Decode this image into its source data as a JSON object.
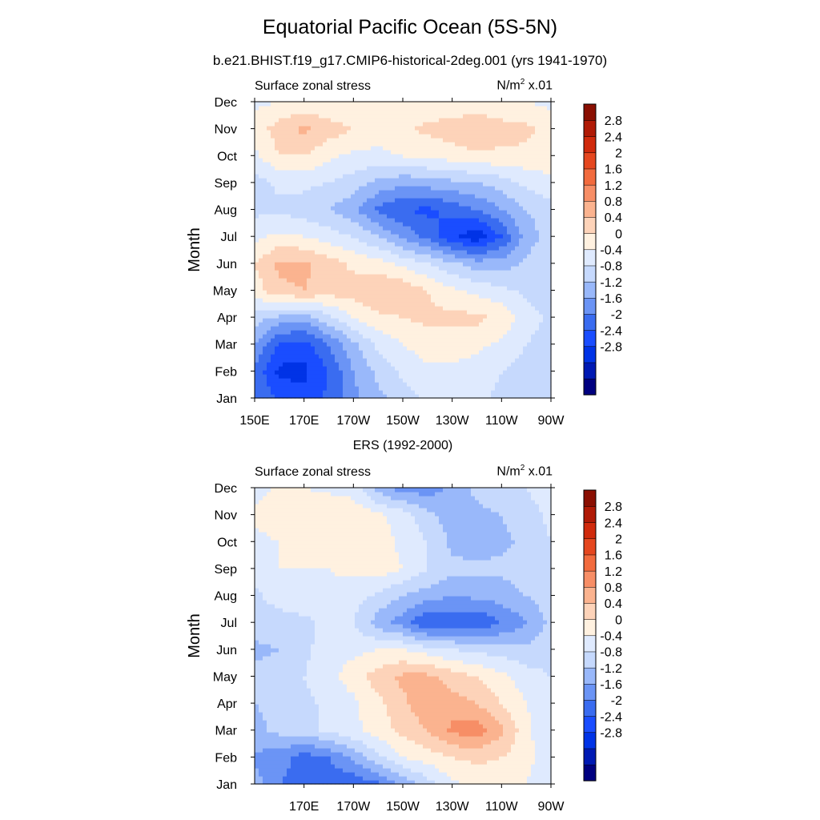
{
  "page": {
    "title": "Equatorial Pacific Ocean (5S-5N)"
  },
  "colors": {
    "palette": [
      "#000080",
      "#0019b3",
      "#0033e6",
      "#1a4dff",
      "#3a6cf0",
      "#6b94f5",
      "#99b8fa",
      "#c6d9fd",
      "#dfeafe",
      "#fff1e0",
      "#fdd3b9",
      "#fbb38f",
      "#f78e66",
      "#f26b3e",
      "#e5471f",
      "#d02a0c",
      "#b01a06",
      "#8a0f02"
    ],
    "palette_order": "low to high"
  },
  "chart_data": [
    {
      "type": "heatmap",
      "title": "b.e21.BHIST.f19_g17.CMIP6-historical-2deg.001 (yrs 1941-1970)",
      "left_string": "Surface zonal stress",
      "right_string": "N/m",
      "right_string_sup": "2",
      "right_string_suffix": " x.01",
      "ylabel": "Month",
      "xlabel": "",
      "x_tick_labels": [
        "150E",
        "170E",
        "170W",
        "150W",
        "130W",
        "110W",
        "90W"
      ],
      "x_tick_values": [
        150,
        170,
        190,
        210,
        230,
        250,
        270
      ],
      "xlim": [
        150,
        270
      ],
      "y_tick_labels": [
        "Jan",
        "Feb",
        "Mar",
        "Apr",
        "May",
        "Jun",
        "Jul",
        "Aug",
        "Sep",
        "Oct",
        "Nov",
        "Dec"
      ],
      "ylim": [
        1,
        12
      ],
      "colorbar_labels": [
        "2.8",
        "2.4",
        "2",
        "1.6",
        "1.2",
        "0.8",
        "0.4",
        "0",
        "-0.4",
        "-0.8",
        "-1.2",
        "-1.6",
        "-2",
        "-2.4",
        "-2.8"
      ],
      "colorbar_levels": [
        -3.2,
        -2.8,
        -2.4,
        -2.0,
        -1.6,
        -1.2,
        -0.8,
        -0.4,
        0,
        0.4,
        0.8,
        1.2,
        1.6,
        2.0,
        2.4,
        2.8,
        3.2
      ],
      "x": [
        150,
        160,
        170,
        180,
        190,
        200,
        210,
        220,
        230,
        240,
        250,
        260,
        270
      ],
      "y": [
        1,
        2,
        3,
        4,
        5,
        6,
        7,
        8,
        9,
        10,
        11,
        12
      ],
      "z": [
        [
          -1.2,
          -1.7,
          -1.9,
          -1.5,
          -0.9,
          -0.5,
          -0.2,
          0.1,
          0.2,
          0.1,
          -0.1,
          -0.3,
          -0.4
        ],
        [
          -1.3,
          -2.1,
          -2.1,
          -1.6,
          -0.8,
          -0.3,
          0.1,
          0.3,
          0.3,
          0.2,
          0.0,
          -0.2,
          -0.3
        ],
        [
          -0.8,
          -1.7,
          -1.8,
          -1.2,
          -0.5,
          0.1,
          0.4,
          0.6,
          0.6,
          0.5,
          0.3,
          0.0,
          -0.2
        ],
        [
          -0.2,
          -0.5,
          -0.6,
          -0.1,
          0.4,
          0.7,
          0.8,
          0.9,
          0.9,
          0.9,
          0.7,
          0.2,
          -0.1
        ],
        [
          0.6,
          1.1,
          1.2,
          1.0,
          1.0,
          1.2,
          1.1,
          0.8,
          0.5,
          0.3,
          0.1,
          -0.1,
          -0.2
        ],
        [
          0.8,
          1.3,
          1.3,
          1.0,
          0.7,
          0.6,
          0.3,
          0.0,
          -0.3,
          -0.6,
          -0.6,
          -0.3,
          -0.2
        ],
        [
          0.3,
          0.5,
          0.4,
          0.2,
          0.0,
          -0.4,
          -0.9,
          -1.3,
          -1.9,
          -2.3,
          -1.6,
          -0.6,
          -0.2
        ],
        [
          -0.1,
          -0.1,
          -0.2,
          -0.4,
          -0.7,
          -1.3,
          -1.6,
          -1.7,
          -1.5,
          -1.2,
          -0.8,
          -0.4,
          -0.2
        ],
        [
          -0.2,
          0.1,
          0.1,
          0.0,
          -0.2,
          -0.5,
          -0.7,
          -0.6,
          -0.5,
          -0.4,
          -0.2,
          0.1,
          0.3
        ],
        [
          0.3,
          0.8,
          0.8,
          0.5,
          0.3,
          0.3,
          0.4,
          0.5,
          0.6,
          0.7,
          0.7,
          0.7,
          0.6
        ],
        [
          0.6,
          1.0,
          1.3,
          1.0,
          0.8,
          0.6,
          0.7,
          0.9,
          1.0,
          1.2,
          1.0,
          0.9,
          0.6
        ],
        [
          0.3,
          0.4,
          0.5,
          0.4,
          0.4,
          0.4,
          0.4,
          0.5,
          0.5,
          0.5,
          0.4,
          0.4,
          0.3
        ]
      ]
    },
    {
      "type": "heatmap",
      "title": "ERS (1992-2000)",
      "left_string": "Surface zonal stress",
      "right_string": "N/m",
      "right_string_sup": "2",
      "right_string_suffix": " x.01",
      "ylabel": "Month",
      "xlabel": "",
      "x_tick_labels": [
        "170E",
        "170W",
        "150W",
        "130W",
        "110W",
        "90W"
      ],
      "x_tick_values": [
        170,
        190,
        210,
        230,
        250,
        270
      ],
      "xlim": [
        150,
        270
      ],
      "y_tick_labels": [
        "Jan",
        "Feb",
        "Mar",
        "Apr",
        "May",
        "Jun",
        "Jul",
        "Aug",
        "Sep",
        "Oct",
        "Nov",
        "Dec"
      ],
      "ylim": [
        1,
        12
      ],
      "colorbar_labels": [
        "2.8",
        "2.4",
        "2",
        "1.6",
        "1.2",
        "0.8",
        "0.4",
        "0",
        "-0.4",
        "-0.8",
        "-1.2",
        "-1.6",
        "-2",
        "-2.4",
        "-2.8"
      ],
      "colorbar_levels": [
        -3.2,
        -2.8,
        -2.4,
        -2.0,
        -1.6,
        -1.2,
        -0.8,
        -0.4,
        0,
        0.4,
        0.8,
        1.2,
        1.6,
        2.0,
        2.4,
        2.8,
        3.2
      ],
      "x": [
        150,
        160,
        170,
        180,
        190,
        200,
        210,
        220,
        230,
        240,
        250,
        260,
        270
      ],
      "y": [
        1,
        2,
        3,
        4,
        5,
        6,
        7,
        8,
        9,
        10,
        11,
        12
      ],
      "z": [
        [
          -0.6,
          -1.2,
          -1.4,
          -1.5,
          -1.5,
          -1.3,
          -0.7,
          -0.2,
          0.3,
          0.5,
          0.5,
          0.4,
          0.2
        ],
        [
          -0.9,
          -1.0,
          -1.4,
          -1.2,
          -0.7,
          -0.1,
          0.4,
          0.6,
          0.8,
          0.9,
          0.8,
          0.5,
          0.2
        ],
        [
          -0.5,
          -0.3,
          -0.2,
          0.1,
          0.3,
          0.6,
          0.9,
          1.2,
          1.7,
          1.8,
          1.3,
          0.5,
          0.1
        ],
        [
          -0.4,
          -0.3,
          -0.1,
          0.1,
          0.3,
          0.7,
          1.1,
          1.5,
          1.4,
          1.2,
          0.8,
          0.4,
          0.1
        ],
        [
          -0.3,
          -0.2,
          0.0,
          0.3,
          0.6,
          1.0,
          1.3,
          1.3,
          1.0,
          0.8,
          0.5,
          0.2,
          0.0
        ],
        [
          -0.5,
          -0.4,
          -0.1,
          0.2,
          0.3,
          0.4,
          0.4,
          0.2,
          0.0,
          -0.1,
          -0.2,
          -0.3,
          -0.2
        ],
        [
          -0.2,
          -0.2,
          -0.1,
          0.1,
          0.0,
          -0.6,
          -1.0,
          -1.6,
          -1.4,
          -1.6,
          -1.2,
          -0.8,
          -0.3
        ],
        [
          -0.1,
          0.2,
          0.3,
          0.3,
          0.2,
          -0.1,
          -0.4,
          -0.6,
          -0.8,
          -0.7,
          -0.6,
          -0.4,
          -0.2
        ],
        [
          0.2,
          0.4,
          0.4,
          0.4,
          0.5,
          0.6,
          0.4,
          0.0,
          -0.3,
          -0.3,
          -0.3,
          -0.2,
          0.0
        ],
        [
          0.3,
          0.4,
          0.5,
          0.5,
          0.6,
          0.6,
          0.3,
          0.0,
          -0.5,
          -0.6,
          -0.5,
          -0.3,
          0.0
        ],
        [
          0.5,
          0.6,
          0.7,
          0.8,
          0.7,
          0.5,
          0.2,
          -0.3,
          -0.6,
          -0.5,
          -0.4,
          -0.2,
          0.1
        ],
        [
          0.2,
          0.5,
          0.4,
          0.3,
          0.2,
          -0.6,
          -1.0,
          -1.0,
          -0.7,
          -0.3,
          -0.1,
          0.0,
          0.3
        ]
      ]
    }
  ]
}
